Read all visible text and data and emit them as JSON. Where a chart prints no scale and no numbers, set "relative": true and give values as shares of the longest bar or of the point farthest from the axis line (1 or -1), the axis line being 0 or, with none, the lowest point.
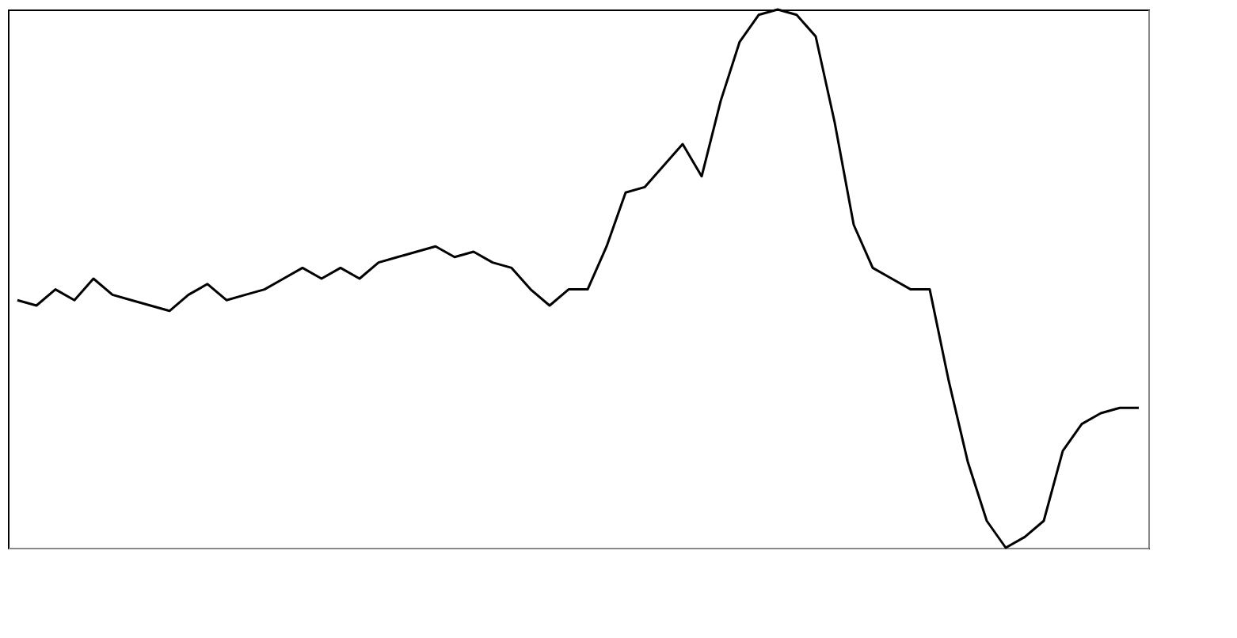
{
  "chart_data": {
    "type": "line",
    "relative": true,
    "tick_labels": false,
    "categories": [
      null,
      null,
      null,
      null,
      null,
      null,
      null,
      null,
      null,
      null,
      null,
      null,
      null,
      null,
      null,
      null,
      null,
      null,
      null,
      null,
      null,
      null,
      null,
      null,
      null,
      null,
      null,
      null,
      null,
      null,
      null,
      null,
      null,
      null,
      null,
      null,
      null,
      null,
      null,
      null,
      null,
      null,
      null,
      null,
      null,
      null,
      null,
      null,
      null,
      null,
      null,
      null,
      null,
      null,
      null,
      null,
      null,
      null,
      null,
      null
    ],
    "series": [
      {
        "color": "#000000",
        "values": [
          0.46,
          0.45,
          0.48,
          0.46,
          0.5,
          0.47,
          0.46,
          0.45,
          0.44,
          0.47,
          0.49,
          0.46,
          0.47,
          0.48,
          0.5,
          0.52,
          0.5,
          0.52,
          0.5,
          0.53,
          0.54,
          0.55,
          0.56,
          0.54,
          0.55,
          0.53,
          0.52,
          0.48,
          0.45,
          0.48,
          0.48,
          0.56,
          0.66,
          0.67,
          0.71,
          0.75,
          0.69,
          0.83,
          0.94,
          0.99,
          1,
          0.99,
          0.95,
          0.79,
          0.6,
          0.52,
          0.5,
          0.48,
          0.48,
          0.31,
          0.16,
          0.05,
          0,
          0.02,
          0.05,
          0.18,
          0.23,
          0.25,
          0.26,
          0.26
        ]
      }
    ]
  }
}
